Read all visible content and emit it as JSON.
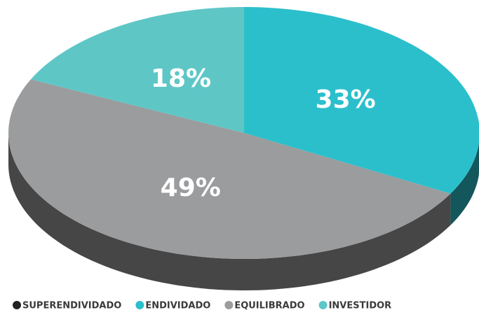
{
  "chart_data": {
    "type": "pie3d",
    "categories": [
      "SUPERENDIVIDADO",
      "ENDIVIDADO",
      "EQUILIBRADO",
      "INVESTIDOR"
    ],
    "values": [
      0,
      33,
      49,
      18
    ],
    "value_labels": [
      null,
      "33%",
      "49%",
      "18%"
    ],
    "colors": [
      "#222222",
      "#2bbfcc",
      "#9b9c9d",
      "#5fc6c6"
    ],
    "legend": "bottom"
  }
}
